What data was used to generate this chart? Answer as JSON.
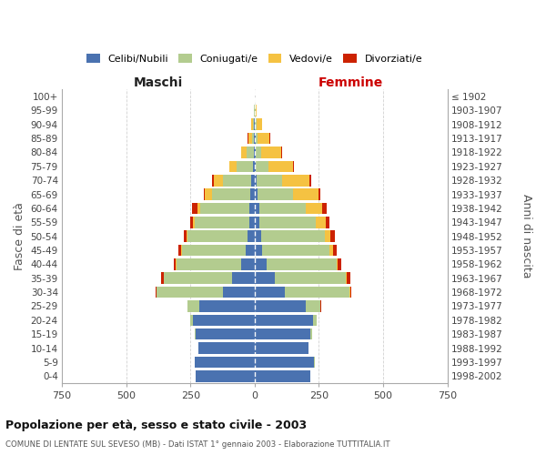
{
  "age_groups": [
    "0-4",
    "5-9",
    "10-14",
    "15-19",
    "20-24",
    "25-29",
    "30-34",
    "35-39",
    "40-44",
    "45-49",
    "50-54",
    "55-59",
    "60-64",
    "65-69",
    "70-74",
    "75-79",
    "80-84",
    "85-89",
    "90-94",
    "95-99",
    "100+"
  ],
  "birth_years": [
    "1998-2002",
    "1993-1997",
    "1988-1992",
    "1983-1987",
    "1978-1982",
    "1973-1977",
    "1968-1972",
    "1963-1967",
    "1958-1962",
    "1953-1957",
    "1948-1952",
    "1943-1947",
    "1938-1942",
    "1933-1937",
    "1928-1932",
    "1923-1927",
    "1918-1922",
    "1913-1917",
    "1908-1912",
    "1903-1907",
    "≤ 1902"
  ],
  "colors": {
    "celibe": "#4a72b0",
    "coniugato": "#b3cc8f",
    "vedovo": "#f5c242",
    "divorziato": "#cc2200"
  },
  "legend_labels": [
    "Celibi/Nubili",
    "Coniugati/e",
    "Vedovi/e",
    "Divorziati/e"
  ],
  "males_celibe": [
    228,
    232,
    218,
    228,
    240,
    215,
    125,
    88,
    52,
    36,
    28,
    22,
    20,
    18,
    14,
    8,
    4,
    3,
    2,
    1,
    0
  ],
  "males_coniugato": [
    0,
    1,
    2,
    4,
    10,
    48,
    255,
    265,
    252,
    248,
    232,
    212,
    192,
    148,
    108,
    62,
    28,
    8,
    5,
    1,
    0
  ],
  "males_vedovo": [
    0,
    0,
    0,
    0,
    0,
    0,
    1,
    1,
    2,
    2,
    4,
    6,
    12,
    28,
    38,
    28,
    20,
    14,
    8,
    2,
    0
  ],
  "males_divorziato": [
    0,
    0,
    0,
    0,
    0,
    0,
    5,
    10,
    10,
    12,
    12,
    10,
    20,
    5,
    5,
    2,
    2,
    1,
    0,
    0,
    0
  ],
  "females_nubile": [
    218,
    232,
    208,
    218,
    228,
    198,
    118,
    78,
    46,
    30,
    24,
    20,
    18,
    12,
    8,
    5,
    4,
    3,
    2,
    1,
    0
  ],
  "females_coniugata": [
    0,
    1,
    2,
    4,
    14,
    58,
    252,
    278,
    272,
    262,
    248,
    218,
    182,
    138,
    98,
    48,
    22,
    8,
    5,
    2,
    0
  ],
  "females_vedova": [
    0,
    0,
    0,
    0,
    0,
    1,
    2,
    4,
    6,
    14,
    22,
    38,
    62,
    98,
    108,
    98,
    78,
    48,
    22,
    5,
    2
  ],
  "females_divorziata": [
    0,
    0,
    0,
    0,
    0,
    1,
    5,
    12,
    12,
    15,
    18,
    15,
    20,
    8,
    5,
    3,
    2,
    1,
    0,
    0,
    0
  ],
  "xlim": 750,
  "xticks": [
    -750,
    -500,
    -250,
    0,
    250,
    500,
    750
  ],
  "title": "Popolazione per età, sesso e stato civile - 2003",
  "subtitle": "COMUNE DI LENTATE SUL SEVESO (MB) - Dati ISTAT 1° gennaio 2003 - Elaborazione TUTTITALIA.IT",
  "ylabel_left": "Fasce di età",
  "ylabel_right": "Anni di nascita",
  "xlabel_left": "Maschi",
  "xlabel_right": "Femmine",
  "bg_color": "#ffffff",
  "grid_color": "#cccccc"
}
